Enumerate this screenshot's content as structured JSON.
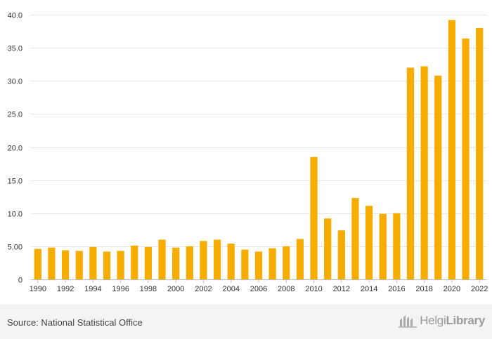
{
  "chart_data": {
    "type": "bar",
    "categories": [
      "1990",
      "1991",
      "1992",
      "1993",
      "1994",
      "1995",
      "1996",
      "1997",
      "1998",
      "1999",
      "2000",
      "2001",
      "2002",
      "2003",
      "2004",
      "2005",
      "2006",
      "2007",
      "2008",
      "2009",
      "2010",
      "2011",
      "2012",
      "2013",
      "2014",
      "2015",
      "2016",
      "2017",
      "2018",
      "2019",
      "2020",
      "2021",
      "2022"
    ],
    "x_tick_labels": [
      "1990",
      "1992",
      "1994",
      "1996",
      "1998",
      "2000",
      "2002",
      "2004",
      "2006",
      "2008",
      "2010",
      "2012",
      "2014",
      "2016",
      "2018",
      "2020",
      "2022"
    ],
    "values": [
      4.6,
      4.8,
      4.4,
      4.3,
      4.9,
      4.2,
      4.3,
      5.1,
      4.9,
      6.0,
      4.8,
      5.0,
      5.8,
      6.0,
      5.4,
      4.5,
      4.2,
      4.7,
      5.0,
      6.1,
      18.5,
      9.2,
      7.4,
      12.3,
      11.1,
      9.9,
      10.0,
      32.0,
      32.2,
      30.8,
      39.2,
      36.4,
      38.0
    ],
    "y_ticks": [
      "0",
      "5.00",
      "10.0",
      "15.0",
      "20.0",
      "25.0",
      "30.0",
      "35.0",
      "40.0"
    ],
    "y_tick_values": [
      0,
      5,
      10,
      15,
      20,
      25,
      30,
      35,
      40
    ],
    "ylim": [
      0,
      40
    ],
    "grid": true,
    "bar_color": "#f7ac00"
  },
  "footer": {
    "source": "Source: National Statistical Office",
    "logo_text_light": "Helgi",
    "logo_text_bold": "Library",
    "logo_icon": "helgi-library-icon"
  }
}
